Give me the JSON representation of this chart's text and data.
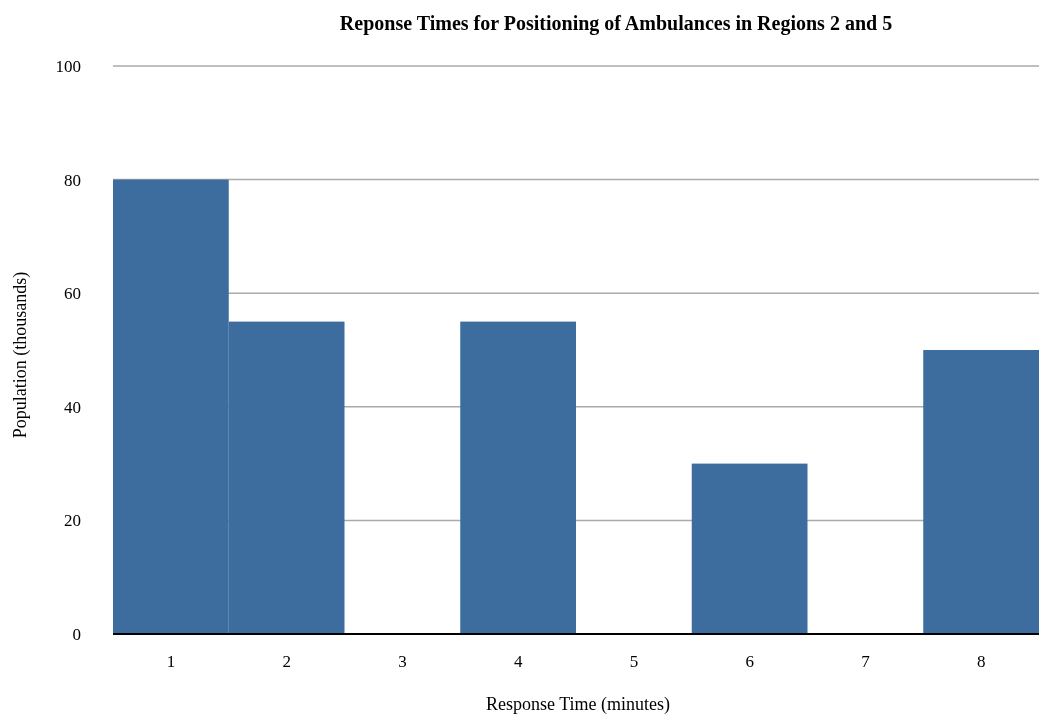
{
  "chart_data": {
    "type": "bar",
    "title": "Reponse Times for Positioning of Ambulances in Regions 2 and 5",
    "xlabel": "Response Time (minutes)",
    "ylabel": "Population (thousands)",
    "categories": [
      "1",
      "2",
      "3",
      "4",
      "5",
      "6",
      "7",
      "8"
    ],
    "values": [
      80,
      55,
      0,
      55,
      0,
      30,
      0,
      50
    ],
    "color": "#3d6d9e",
    "ylim": [
      0,
      100
    ],
    "yticks": [
      0,
      20,
      40,
      60,
      80,
      100
    ],
    "grid": "y"
  }
}
